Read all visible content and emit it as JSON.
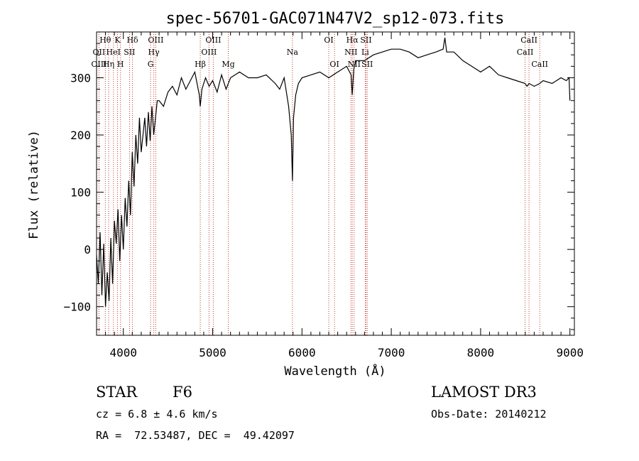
{
  "chart_data": {
    "type": "line",
    "title": "spec-56701-GAC071N47V2_sp12-073.fits",
    "xlabel": "Wavelength (Å)",
    "ylabel": "Flux (relative)",
    "xlim": [
      3700,
      9050
    ],
    "ylim": [
      -150,
      380
    ],
    "xticks": [
      4000,
      5000,
      6000,
      7000,
      8000,
      9000
    ],
    "yticks": [
      -100,
      0,
      100,
      200,
      300
    ],
    "series": [
      {
        "name": "flux",
        "x": [
          3700,
          3720,
          3740,
          3760,
          3780,
          3800,
          3820,
          3840,
          3860,
          3880,
          3900,
          3920,
          3940,
          3960,
          3980,
          4000,
          4020,
          4040,
          4060,
          4080,
          4100,
          4120,
          4140,
          4160,
          4180,
          4200,
          4220,
          4240,
          4260,
          4280,
          4300,
          4320,
          4340,
          4360,
          4380,
          4400,
          4450,
          4500,
          4550,
          4600,
          4650,
          4700,
          4750,
          4800,
          4850,
          4861,
          4880,
          4920,
          4960,
          5000,
          5050,
          5100,
          5150,
          5200,
          5300,
          5400,
          5500,
          5600,
          5700,
          5750,
          5800,
          5850,
          5880,
          5893,
          5905,
          5930,
          5960,
          6000,
          6100,
          6200,
          6300,
          6400,
          6500,
          6550,
          6563,
          6580,
          6600,
          6700,
          6800,
          6900,
          7000,
          7100,
          7200,
          7300,
          7400,
          7500,
          7580,
          7600,
          7620,
          7700,
          7800,
          7900,
          8000,
          8100,
          8200,
          8300,
          8400,
          8498,
          8520,
          8542,
          8600,
          8662,
          8700,
          8800,
          8900,
          8960,
          8990,
          9000
        ],
        "values": [
          -10,
          -60,
          30,
          -80,
          10,
          -100,
          -40,
          -90,
          20,
          -60,
          50,
          10,
          70,
          -20,
          60,
          0,
          90,
          40,
          120,
          60,
          170,
          110,
          200,
          150,
          230,
          170,
          200,
          230,
          180,
          240,
          190,
          250,
          200,
          230,
          260,
          260,
          250,
          275,
          285,
          270,
          300,
          280,
          295,
          310,
          270,
          250,
          280,
          300,
          285,
          295,
          275,
          305,
          280,
          300,
          310,
          300,
          300,
          305,
          290,
          280,
          300,
          250,
          200,
          120,
          230,
          270,
          290,
          300,
          305,
          310,
          300,
          310,
          320,
          305,
          270,
          315,
          330,
          330,
          340,
          345,
          350,
          350,
          345,
          335,
          340,
          345,
          350,
          370,
          345,
          345,
          330,
          320,
          310,
          320,
          305,
          300,
          295,
          290,
          285,
          290,
          285,
          290,
          295,
          290,
          300,
          295,
          300,
          260
        ]
      }
    ],
    "line_markers": [
      {
        "label": "Hθ",
        "wave": 3798,
        "row": 0
      },
      {
        "label": "OII",
        "wave": 3727,
        "row": 1
      },
      {
        "label": "OIII",
        "wave": 3727,
        "row": 2
      },
      {
        "label": "K",
        "wave": 3934,
        "row": 0
      },
      {
        "label": "HeI",
        "wave": 3889,
        "row": 1
      },
      {
        "label": "Hη",
        "wave": 3835,
        "row": 2
      },
      {
        "label": "Hδ",
        "wave": 4102,
        "row": 0
      },
      {
        "label": "SII",
        "wave": 4069,
        "row": 1
      },
      {
        "label": "H",
        "wave": 3968,
        "row": 2
      },
      {
        "label": "OIII",
        "wave": 4363,
        "row": 0
      },
      {
        "label": "Hγ",
        "wave": 4341,
        "row": 1
      },
      {
        "label": "G",
        "wave": 4305,
        "row": 2
      },
      {
        "label": "OIII",
        "wave": 5007,
        "row": 0
      },
      {
        "label": "OIII",
        "wave": 4959,
        "row": 1
      },
      {
        "label": "Hβ",
        "wave": 4861,
        "row": 2
      },
      {
        "label": "Mg",
        "wave": 5175,
        "row": 2
      },
      {
        "label": "Na",
        "wave": 5893,
        "row": 1
      },
      {
        "label": "OI",
        "wave": 6300,
        "row": 0
      },
      {
        "label": "OI",
        "wave": 6364,
        "row": 2
      },
      {
        "label": "Hα",
        "wave": 6563,
        "row": 0
      },
      {
        "label": "SII",
        "wave": 6717,
        "row": 0
      },
      {
        "label": "NII",
        "wave": 6548,
        "row": 1
      },
      {
        "label": "Li",
        "wave": 6708,
        "row": 1
      },
      {
        "label": "NII",
        "wave": 6584,
        "row": 2
      },
      {
        "label": "SII",
        "wave": 6731,
        "row": 2
      },
      {
        "label": "CaII",
        "wave": 8542,
        "row": 0
      },
      {
        "label": "CaII",
        "wave": 8498,
        "row": 1
      },
      {
        "label": "CaII",
        "wave": 8662,
        "row": 2
      }
    ]
  },
  "info": {
    "object_type": "STAR",
    "subclass": "F6",
    "survey": "LAMOST DR3",
    "cz": "cz = 6.8 ± 4.6 km/s",
    "obs_date": "Obs-Date: 20140212",
    "coords": "RA =  72.53487, DEC =  49.42097"
  }
}
